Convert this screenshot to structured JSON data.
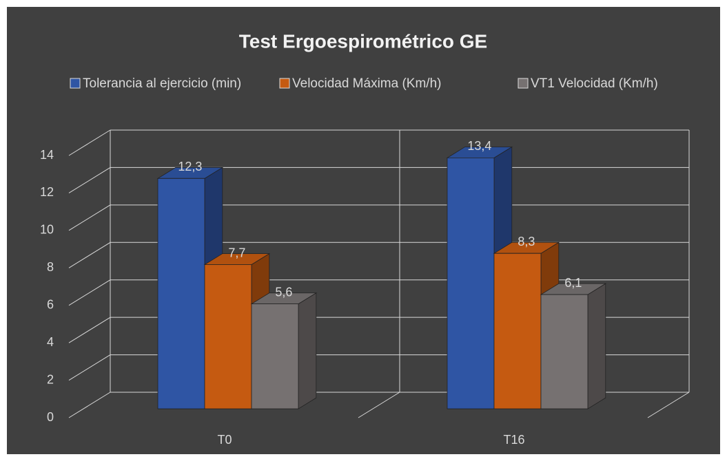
{
  "chart_data": {
    "type": "bar3d",
    "title": "Test Ergoespirométrico GE",
    "categories": [
      "T0",
      "T16"
    ],
    "series": [
      {
        "name": "Tolerancia al ejercicio (min)",
        "color": "#2f55a4",
        "values": [
          12.3,
          13.4
        ],
        "value_labels": [
          "12,3",
          "13,4"
        ]
      },
      {
        "name": "Velocidad Máxima (Km/h)",
        "color": "#c55a11",
        "values": [
          7.7,
          8.3
        ],
        "value_labels": [
          "7,7",
          "8,3"
        ]
      },
      {
        "name": "VT1 Velocidad (Km/h)",
        "color": "#767171",
        "values": [
          5.6,
          6.1
        ],
        "value_labels": [
          "5,6",
          "6,1"
        ]
      }
    ],
    "ylim": [
      0,
      14
    ],
    "yticks": [
      0,
      2,
      4,
      6,
      8,
      10,
      12,
      14
    ],
    "grid": true,
    "legend": "top"
  }
}
